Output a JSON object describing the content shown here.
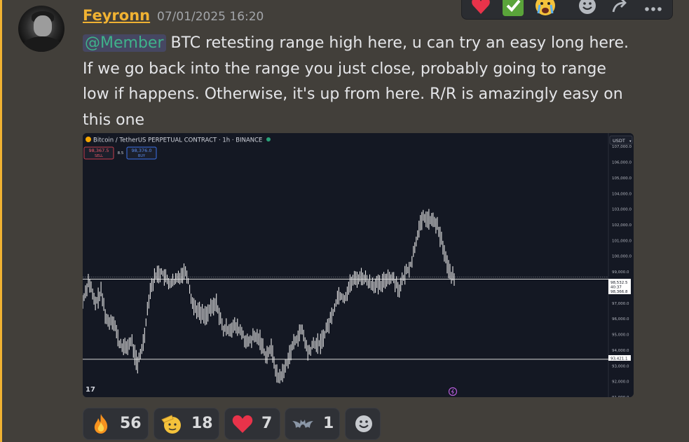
{
  "message": {
    "author": "Feyronn",
    "timestamp": "07/01/2025 16:20",
    "mention": "@Member",
    "text": " BTC retesting range high here, u can try an easy long here. If we go back into the range you just close, probably going to range low if happens. Otherwise, it's up from here. R/R is amazingly easy on this one"
  },
  "toolbar": {
    "buttons": [
      "heart-icon",
      "check-icon",
      "crying-face-icon",
      "add-reaction-icon",
      "reply-icon",
      "more-icon"
    ]
  },
  "chart": {
    "header": "Bitcoin / TetherUS PERPETUAL CONTRACT · 1h · BINANCE",
    "sell_price": "98,367.5",
    "sell_label": "SELL",
    "spread": "8.5",
    "buy_price": "98,376.0",
    "buy_label": "BUY",
    "currency": "USDT",
    "price_tag_1": "98,532.5",
    "price_tag_2": "40:37",
    "price_tag_3": "98,366.8",
    "range_low_tag": "93,421.1",
    "logo_text": "17",
    "accent_color": "#d8d8d8"
  },
  "chart_data": {
    "type": "line",
    "title": "Bitcoin / TetherUS PERPETUAL CONTRACT · 1h · BINANCE",
    "y_ticks": [
      "107,000.0",
      "106,000.0",
      "105,000.0",
      "104,000.0",
      "103,000.0",
      "102,000.0",
      "101,000.0",
      "100,000.0",
      "99,000.0",
      "97,000.0",
      "96,000.0",
      "95,000.0",
      "94,000.0",
      "93,000.0",
      "92,000.0",
      "91,000.0"
    ],
    "ylim": [
      91000,
      107500
    ],
    "horizontal_lines": [
      98532.5,
      93421.1
    ],
    "price_path": [
      97100,
      98500,
      96900,
      97700,
      95800,
      96000,
      94400,
      94100,
      94600,
      93000,
      94600,
      97800,
      98800,
      99000,
      98300,
      98300,
      98800,
      99100,
      97000,
      96500,
      96200,
      96600,
      97000,
      95300,
      95400,
      95500,
      95200,
      94400,
      94800,
      94800,
      93700,
      94100,
      92200,
      92600,
      93800,
      94700,
      95300,
      93800,
      94400,
      94400,
      95300,
      96300,
      97600,
      97300,
      98300,
      98600,
      98700,
      98300,
      98200,
      98100,
      98700,
      98600,
      97900,
      98900,
      99600,
      101500,
      102500,
      102300,
      102100,
      100900,
      99200,
      98500
    ]
  },
  "reactions": [
    {
      "emoji": "fire-emoji",
      "count": "56"
    },
    {
      "emoji": "saluting-face-emoji",
      "count": "18"
    },
    {
      "emoji": "heart-emoji",
      "count": "7"
    },
    {
      "emoji": "bat-emoji",
      "count": "1"
    }
  ],
  "add_reaction": "add-reaction-icon"
}
